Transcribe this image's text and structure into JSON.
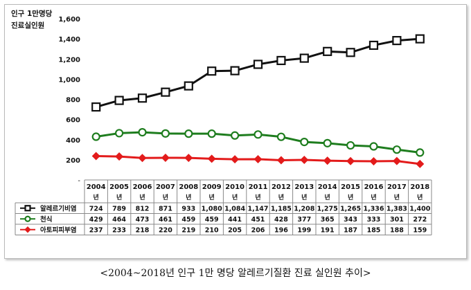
{
  "y_title": {
    "line1": "인구 1만명당",
    "line2": "진료실인원"
  },
  "caption": "<2004~2018년 인구 1만 명당 알레르기질환 진료 실인원 추이>",
  "year_suffix": "년",
  "colors": {
    "allergy": "#111111",
    "asthma": "#1e7d1e",
    "atopic": "#e31b1b",
    "grid": "#d0d0d0"
  },
  "chart_data": {
    "type": "line",
    "title": "",
    "ylabel": "인구 1만명당 진료실인원",
    "ylim": [
      0,
      1600
    ],
    "yticks": [
      200,
      400,
      600,
      800,
      1000,
      1200,
      1400,
      1600
    ],
    "ytick_labels": [
      "200",
      "400",
      "600",
      "800",
      "1,000",
      "1,200",
      "1,400",
      "1,600"
    ],
    "categories": [
      "2004",
      "2005",
      "2006",
      "2007",
      "2008",
      "2009",
      "2010",
      "2011",
      "2012",
      "2013",
      "2014",
      "2015",
      "2016",
      "2017",
      "2018"
    ],
    "grid": false,
    "legend": "data-table",
    "series": [
      {
        "name": "알레르기비염",
        "marker": "square",
        "color": "#111111",
        "values": [
          724,
          789,
          812,
          871,
          933,
          1080,
          1084,
          1147,
          1185,
          1208,
          1275,
          1265,
          1336,
          1383,
          1400
        ],
        "labels": [
          "724",
          "789",
          "812",
          "871",
          "933",
          "1,080",
          "1,084",
          "1,147",
          "1,185",
          "1,208",
          "1,275",
          "1,265",
          "1,336",
          "1,383",
          "1,400"
        ]
      },
      {
        "name": "천식",
        "marker": "circle",
        "color": "#1e7d1e",
        "values": [
          429,
          464,
          473,
          461,
          459,
          459,
          441,
          451,
          428,
          377,
          365,
          343,
          333,
          301,
          272
        ],
        "labels": [
          "429",
          "464",
          "473",
          "461",
          "459",
          "459",
          "441",
          "451",
          "428",
          "377",
          "365",
          "343",
          "333",
          "301",
          "272"
        ]
      },
      {
        "name": "아토피피부염",
        "marker": "diamond",
        "color": "#e31b1b",
        "values": [
          237,
          233,
          218,
          220,
          219,
          210,
          205,
          206,
          196,
          199,
          191,
          187,
          185,
          188,
          159
        ],
        "labels": [
          "237",
          "233",
          "218",
          "220",
          "219",
          "210",
          "205",
          "206",
          "196",
          "199",
          "191",
          "187",
          "185",
          "188",
          "159"
        ]
      }
    ]
  }
}
